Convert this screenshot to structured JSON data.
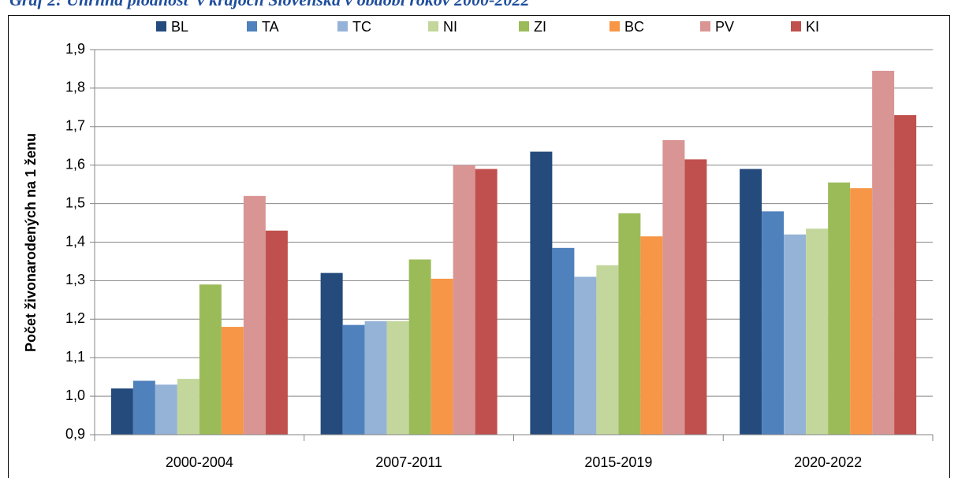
{
  "chart_data": {
    "type": "bar",
    "title": "Graf 2: Úhrnná plodnosť v krajoch Slovenska v období rokov 2000-2022",
    "y_label": "Počet živonarodených na 1 ženu",
    "categories": [
      "2000-2004",
      "2007-2011",
      "2015-2019",
      "2020-2022"
    ],
    "series": [
      {
        "name": "BL",
        "color": "#254a7c",
        "values": [
          1.02,
          1.32,
          1.635,
          1.59
        ]
      },
      {
        "name": "TA",
        "color": "#4f81bd",
        "values": [
          1.04,
          1.185,
          1.385,
          1.48
        ]
      },
      {
        "name": "TC",
        "color": "#95b3d7",
        "values": [
          1.03,
          1.195,
          1.31,
          1.42
        ]
      },
      {
        "name": "NI",
        "color": "#c3d69b",
        "values": [
          1.045,
          1.195,
          1.34,
          1.435
        ]
      },
      {
        "name": "ZI",
        "color": "#9bbb59",
        "values": [
          1.29,
          1.355,
          1.475,
          1.555
        ]
      },
      {
        "name": "BC",
        "color": "#f79646",
        "values": [
          1.18,
          1.305,
          1.415,
          1.54
        ]
      },
      {
        "name": "PV",
        "color": "#d99594",
        "values": [
          1.52,
          1.6,
          1.665,
          1.845
        ]
      },
      {
        "name": "KI",
        "color": "#c0504d",
        "values": [
          1.43,
          1.59,
          1.615,
          1.73
        ]
      }
    ],
    "ylim": [
      0.9,
      1.9
    ],
    "yticks": [
      {
        "value": 0.9,
        "label": "0,9"
      },
      {
        "value": 1.0,
        "label": "1,0"
      },
      {
        "value": 1.1,
        "label": "1,1"
      },
      {
        "value": 1.2,
        "label": "1,2"
      },
      {
        "value": 1.3,
        "label": "1,3"
      },
      {
        "value": 1.4,
        "label": "1,4"
      },
      {
        "value": 1.5,
        "label": "1,5"
      },
      {
        "value": 1.6,
        "label": "1,6"
      },
      {
        "value": 1.7,
        "label": "1,7"
      },
      {
        "value": 1.8,
        "label": "1,8"
      },
      {
        "value": 1.9,
        "label": "1,9"
      }
    ],
    "grid": true
  }
}
